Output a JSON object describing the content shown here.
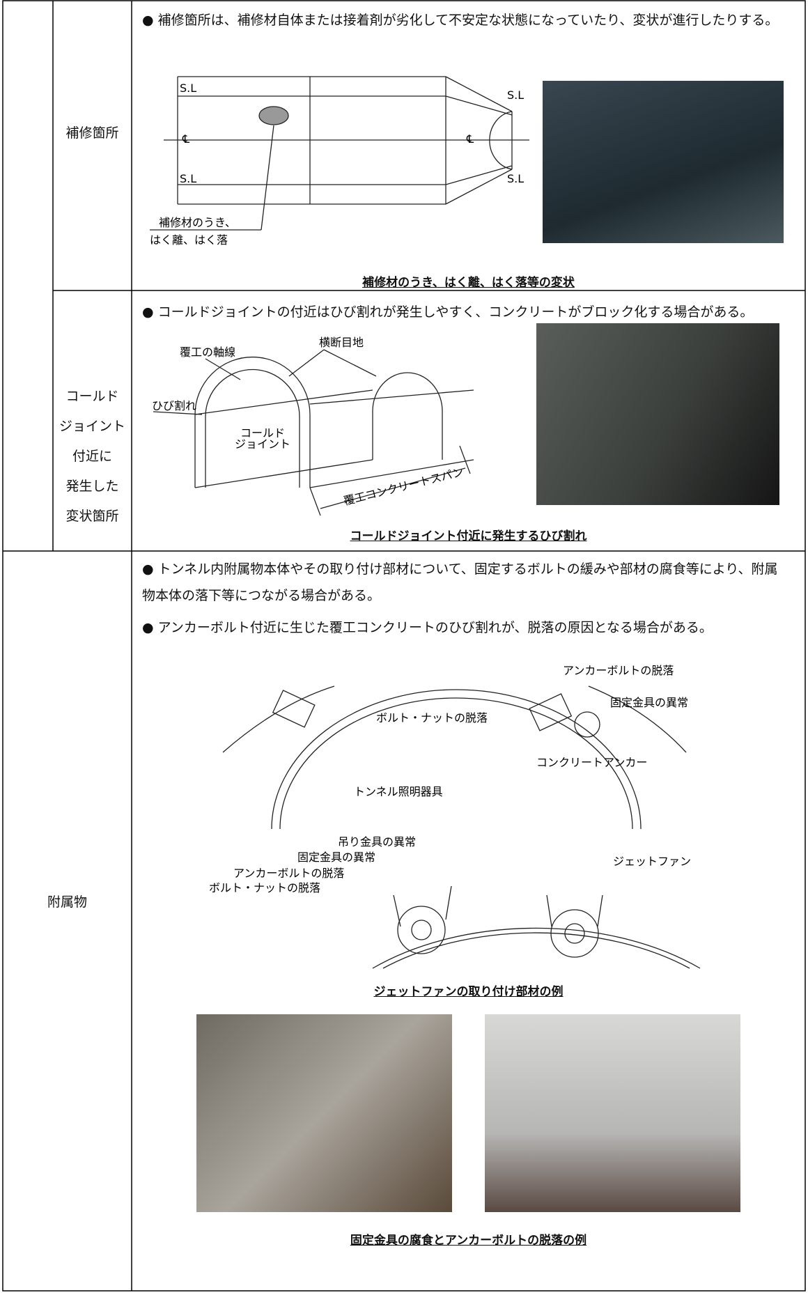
{
  "rows": [
    {
      "label": "補修箇所",
      "bullets": [
        "補修箇所は、補修材自体または接着剤が劣化して不安定な状態になっていたり、変状が進行したりする。"
      ],
      "diagram_labels": [
        "S.L",
        "S.L",
        "S.L",
        "S.L",
        "℄",
        "℄",
        "補修材のうき、",
        "はく離、はく落"
      ],
      "caption": "補修材のうき、はく離、はく落等の変状"
    },
    {
      "label_lines": [
        "コールド",
        "ジョイント",
        "付近に",
        "発生した",
        "変状箇所"
      ],
      "bullets": [
        "コールドジョイントの付近はひび割れが発生しやすく、コンクリートがブロック化する場合がある。"
      ],
      "diagram_labels": [
        "覆工の軸線",
        "横断目地",
        "ひび割れ",
        "コールド",
        "ジョイント",
        "覆工コンクリートスパン"
      ],
      "caption": "コールドジョイント付近に発生するひび割れ"
    },
    {
      "label": "附属物",
      "bullets": [
        "トンネル内附属物本体やその取り付け部材について、固定するボルトの緩みや部材の腐食等により、附属物本体の落下等につながる場合がある。",
        "アンカーボルト付近に生じた覆工コンクリートのひび割れが、脱落の原因となる場合がある。"
      ],
      "diagram_labels": [
        "アンカーボルトの脱落",
        "ボルト・ナットの脱落",
        "固定金具の異常",
        "コンクリートアンカー",
        "トンネル照明器具",
        "吊り金具の異常",
        "固定金具の異常",
        "アンカーボルトの脱落",
        "ジェットファン",
        "ボルト・ナットの脱落"
      ],
      "caption": "ジェットファンの取り付け部材の例",
      "caption2": "固定金具の腐食とアンカーボルトの脱落の例"
    }
  ]
}
